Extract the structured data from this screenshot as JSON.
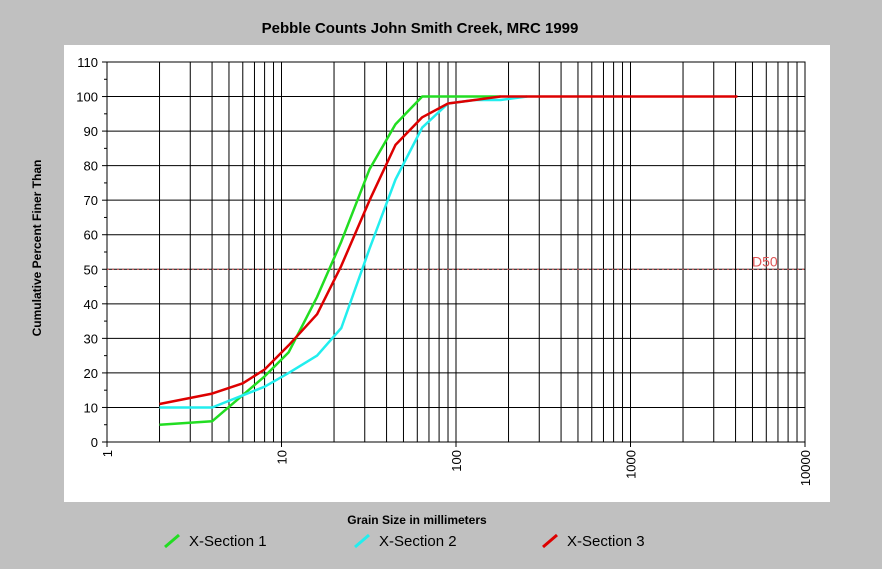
{
  "colors": {
    "background": "#c0c0c0",
    "plot_area": "#ffffff",
    "grid": "#000000",
    "d50": "#dd5555",
    "series": [
      "#22dd22",
      "#22eeee",
      "#dd0000"
    ]
  },
  "chart_data": {
    "type": "line",
    "title": "Pebble Counts John Smith Creek, MRC 1999",
    "xlabel": "Grain Size in millimeters",
    "ylabel": "Cumulative Percent Finer Than",
    "xscale": "log",
    "xlim": [
      1,
      10000
    ],
    "ylim": [
      0,
      110
    ],
    "x_ticks": [
      1,
      10,
      100,
      1000,
      10000
    ],
    "x_tick_labels": [
      "1",
      "10",
      "100",
      "1000",
      "10000"
    ],
    "y_ticks": [
      0,
      10,
      20,
      30,
      40,
      50,
      60,
      70,
      80,
      90,
      100,
      110
    ],
    "y_tick_labels": [
      "0",
      "10",
      "20",
      "30",
      "40",
      "50",
      "60",
      "70",
      "80",
      "90",
      "100",
      "110"
    ],
    "grid": true,
    "legend": "bottom",
    "reference_line": {
      "y": 50,
      "label": "D50"
    },
    "series": [
      {
        "name": "X-Section 1",
        "x": [
          2,
          4,
          8,
          11,
          16,
          22,
          32,
          45,
          64,
          90,
          128,
          180
        ],
        "y": [
          5,
          6,
          19,
          26,
          42,
          58,
          79,
          92,
          100,
          100,
          100,
          100
        ]
      },
      {
        "name": "X-Section 2",
        "x": [
          2,
          4,
          8,
          11,
          16,
          22,
          32,
          45,
          64,
          90,
          128,
          180,
          256
        ],
        "y": [
          10,
          10,
          16,
          20,
          25,
          33,
          56,
          76,
          91,
          98,
          99,
          99,
          100
        ]
      },
      {
        "name": "X-Section 3",
        "x": [
          2,
          4,
          6,
          8,
          11,
          16,
          22,
          32,
          45,
          64,
          90,
          128,
          180,
          256,
          512,
          1024,
          2048,
          4096
        ],
        "y": [
          11,
          14,
          17,
          21,
          28,
          37,
          51,
          70,
          86,
          94,
          98,
          99,
          100,
          100,
          100,
          100,
          100,
          100
        ]
      }
    ]
  }
}
